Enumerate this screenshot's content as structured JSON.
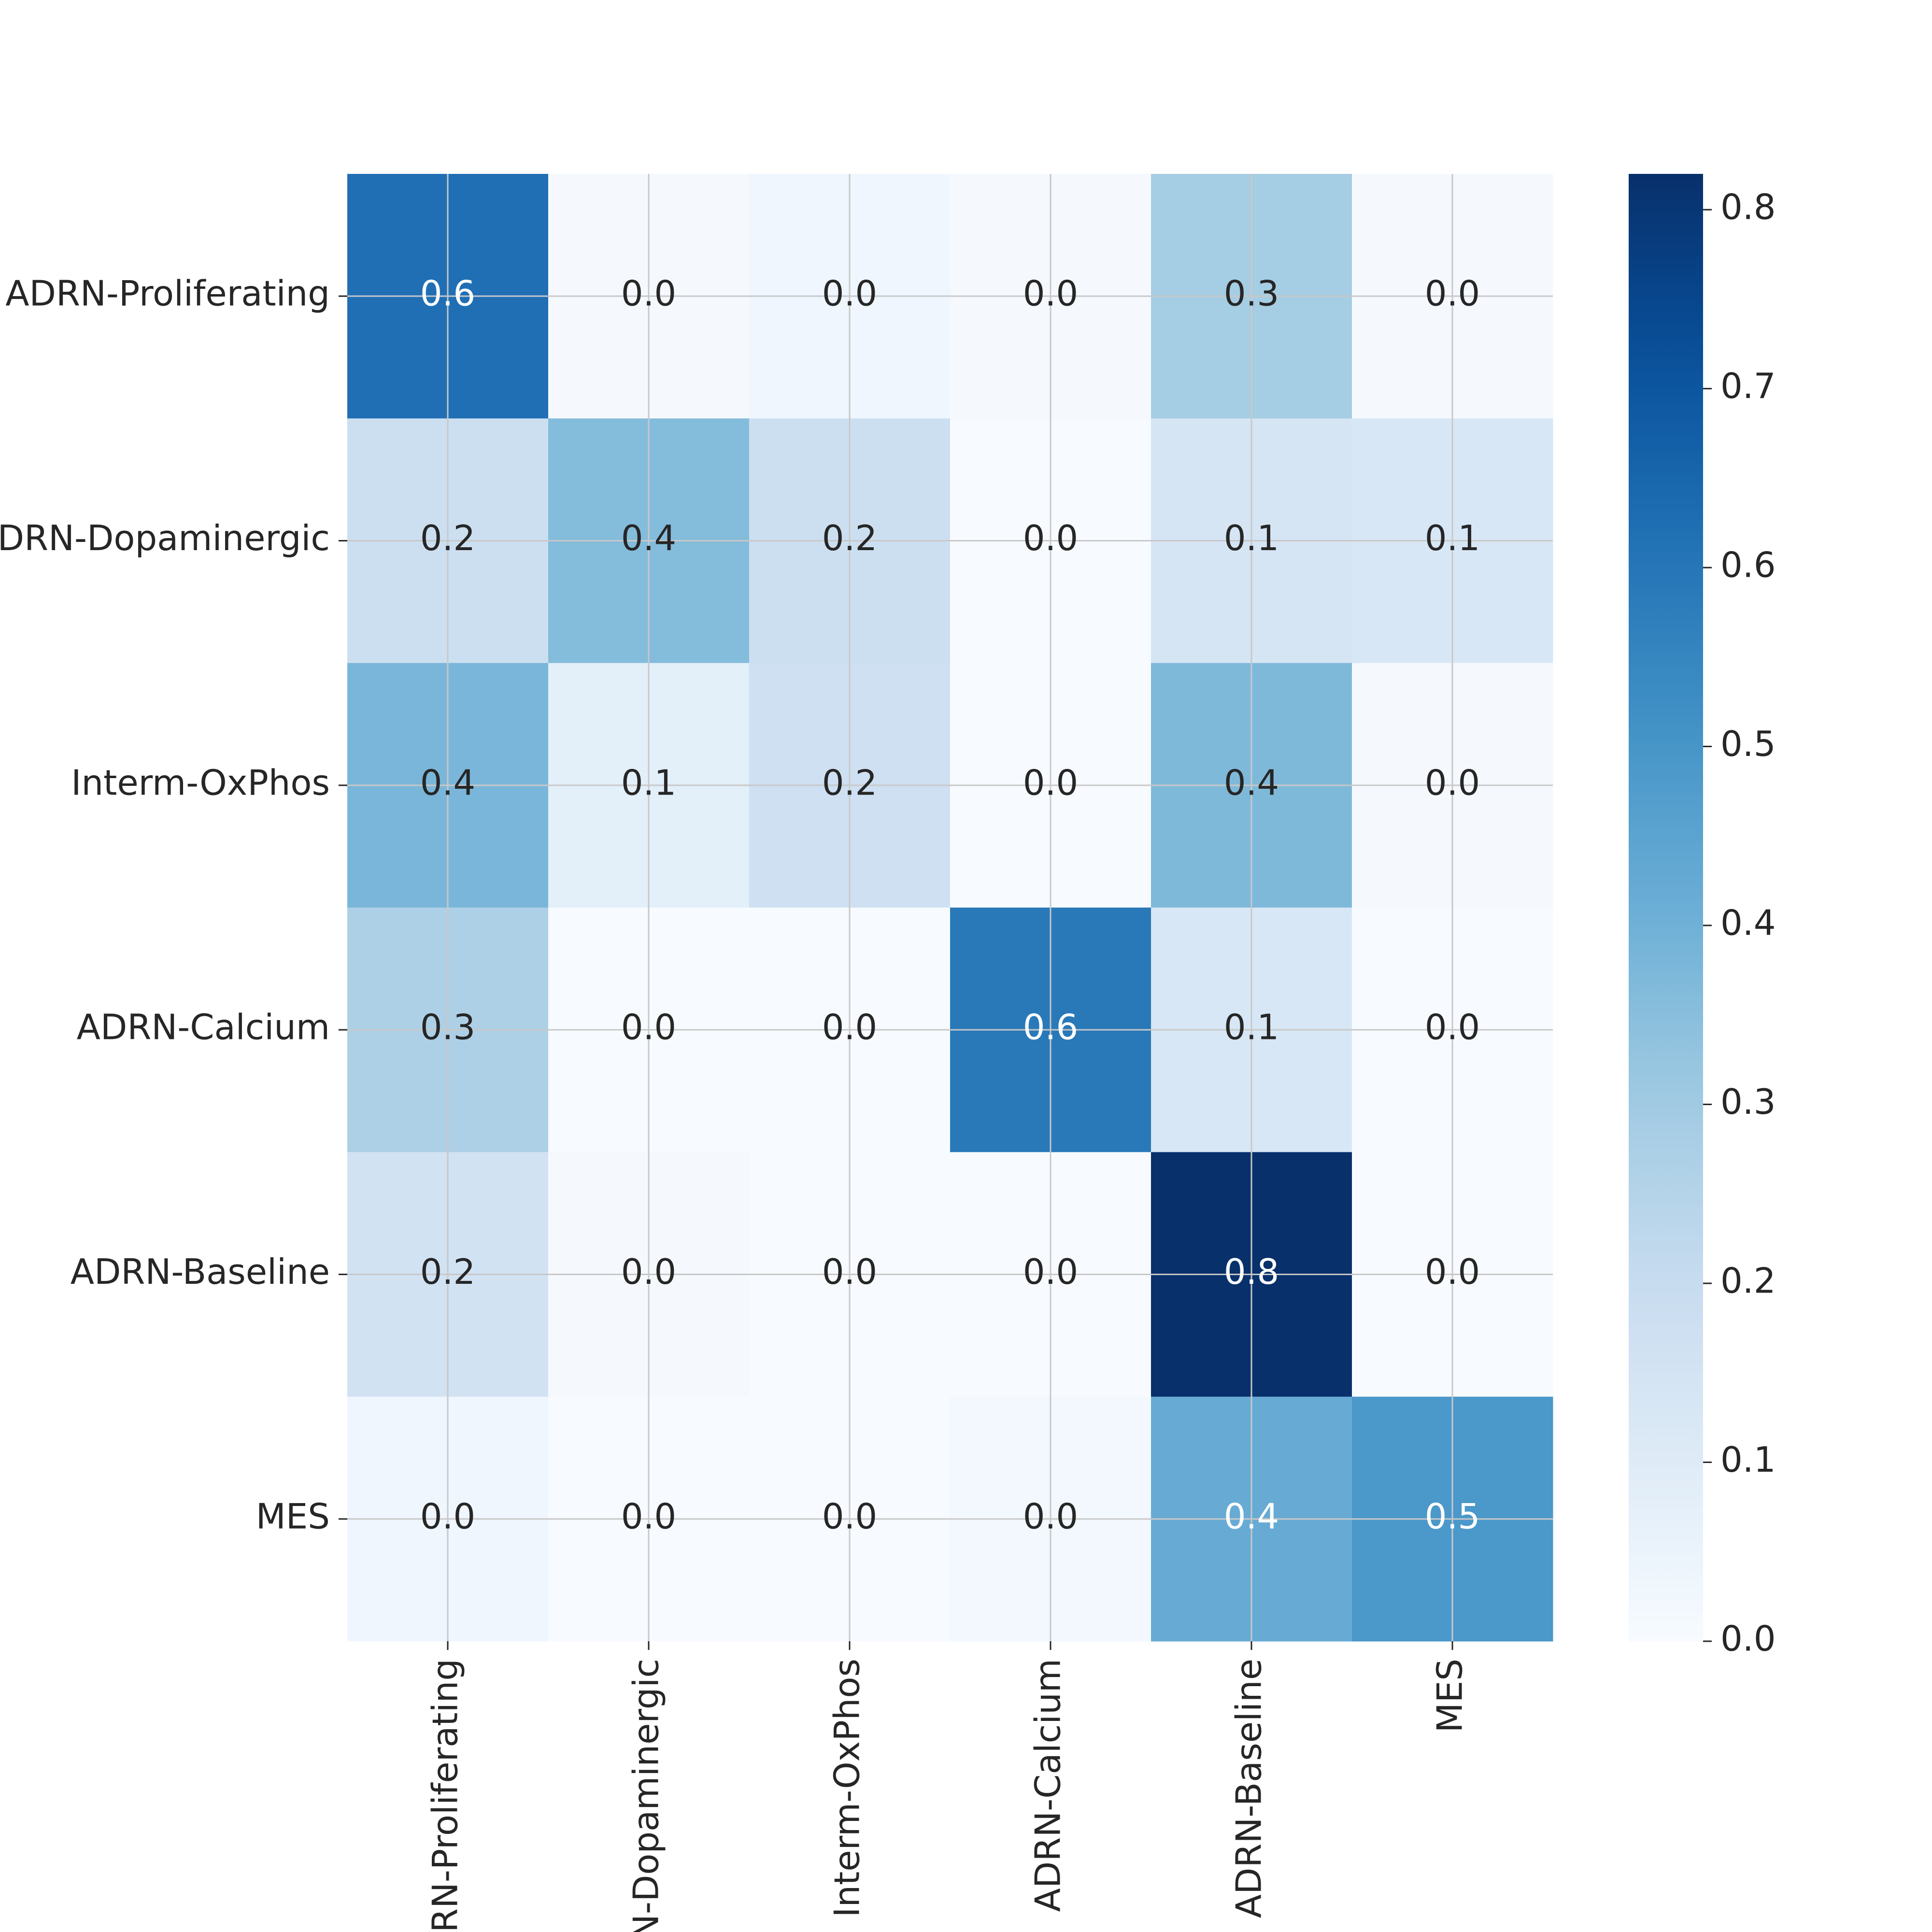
{
  "chart_data": {
    "type": "heatmap",
    "rows": [
      "ADRN-Proliferating",
      "ADRN-Dopaminergic",
      "Interm-OxPhos",
      "ADRN-Calcium",
      "ADRN-Baseline",
      "MES"
    ],
    "columns": [
      "ADRN-Proliferating",
      "ADRN-Dopaminergic",
      "Interm-OxPhos",
      "ADRN-Calcium",
      "ADRN-Baseline",
      "MES"
    ],
    "values": [
      [
        0.62,
        0.01,
        0.03,
        0.01,
        0.29,
        0.01
      ],
      [
        0.18,
        0.36,
        0.18,
        0.0,
        0.14,
        0.13
      ],
      [
        0.38,
        0.08,
        0.17,
        0.0,
        0.37,
        0.01
      ],
      [
        0.27,
        0.0,
        0.0,
        0.59,
        0.13,
        0.0
      ],
      [
        0.16,
        0.01,
        0.0,
        0.0,
        0.82,
        0.0
      ],
      [
        0.03,
        0.0,
        0.0,
        0.02,
        0.42,
        0.49
      ]
    ],
    "value_labels": [
      [
        "0.6",
        "0.0",
        "0.0",
        "0.0",
        "0.3",
        "0.0"
      ],
      [
        "0.2",
        "0.4",
        "0.2",
        "0.0",
        "0.1",
        "0.1"
      ],
      [
        "0.4",
        "0.1",
        "0.2",
        "0.0",
        "0.4",
        "0.0"
      ],
      [
        "0.3",
        "0.0",
        "0.0",
        "0.6",
        "0.1",
        "0.0"
      ],
      [
        "0.2",
        "0.0",
        "0.0",
        "0.0",
        "0.8",
        "0.0"
      ],
      [
        "0.0",
        "0.0",
        "0.0",
        "0.0",
        "0.4",
        "0.5"
      ]
    ],
    "colormap": "Blues",
    "clim": [
      0,
      0.82
    ],
    "cticks": [
      0.0,
      0.1,
      0.2,
      0.3,
      0.4,
      0.5,
      0.6,
      0.7,
      0.8
    ],
    "grid": true
  }
}
